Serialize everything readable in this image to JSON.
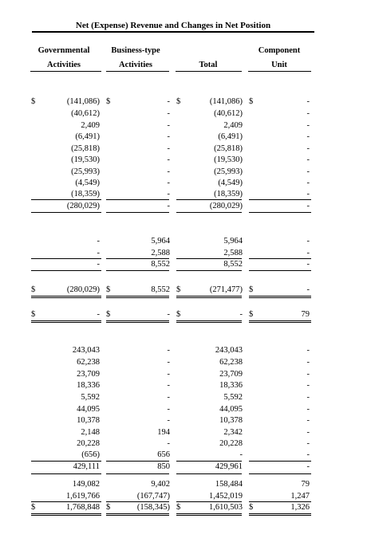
{
  "title": "Net (Expense) Revenue and Changes in Net Position",
  "headers": {
    "governmental": [
      "Governmental",
      "Activities"
    ],
    "business": [
      "Business-type",
      "Activities"
    ],
    "total": [
      "Total"
    ],
    "component": [
      "Component",
      "Unit"
    ]
  },
  "dollar_sign": "$",
  "dash": "-",
  "sections": {
    "s1": {
      "gov": [
        "(141,086)",
        "(40,612)",
        "2,409",
        "(6,491)",
        "(25,818)",
        "(19,530)",
        "(25,993)",
        "(4,549)",
        "(18,359)"
      ],
      "bus": [
        "-",
        "-",
        "-",
        "-",
        "-",
        "-",
        "-",
        "-",
        "-"
      ],
      "tot": [
        "(141,086)",
        "(40,612)",
        "2,409",
        "(6,491)",
        "(25,818)",
        "(19,530)",
        "(25,993)",
        "(4,549)",
        "(18,359)"
      ],
      "comp": [
        "-",
        "-",
        "-",
        "-",
        "-",
        "-",
        "-",
        "-",
        "-"
      ],
      "subtotal": {
        "gov": "(280,029)",
        "bus": "-",
        "tot": "(280,029)",
        "comp": "-"
      }
    },
    "s2": {
      "gov": [
        "-",
        "-"
      ],
      "bus": [
        "5,964",
        "2,588"
      ],
      "tot": [
        "5,964",
        "2,588"
      ],
      "comp": [
        "-",
        "-"
      ],
      "subtotal": {
        "gov": "-",
        "bus": "8,552",
        "tot": "8,552",
        "comp": "-"
      }
    },
    "net1": {
      "gov": "(280,029)",
      "bus": "8,552",
      "tot": "(271,477)",
      "comp": "-"
    },
    "net2": {
      "gov": "-",
      "bus": "-",
      "tot": "-",
      "comp": "79"
    },
    "s3": {
      "gov": [
        "243,043",
        "62,238",
        "23,709",
        "18,336",
        "5,592",
        "44,095",
        "10,378",
        "2,148",
        "20,228",
        "(656)"
      ],
      "bus": [
        "-",
        "-",
        "-",
        "-",
        "-",
        "-",
        "-",
        "194",
        "-",
        "656"
      ],
      "tot": [
        "243,043",
        "62,238",
        "23,709",
        "18,336",
        "5,592",
        "44,095",
        "10,378",
        "2,342",
        "20,228",
        "-"
      ],
      "comp": [
        "-",
        "-",
        "-",
        "-",
        "-",
        "-",
        "-",
        "-",
        "-",
        "-"
      ],
      "subtotal": {
        "gov": "429,111",
        "bus": "850",
        "tot": "429,961",
        "comp": "-"
      }
    },
    "change": {
      "gov": "149,082",
      "bus": "9,402",
      "tot": "158,484",
      "comp": "79"
    },
    "beginning": {
      "gov": "1,619,766",
      "bus": "(167,747)",
      "tot": "1,452,019",
      "comp": "1,247"
    },
    "ending": {
      "gov": "1,768,848",
      "bus": "(158,345)",
      "tot": "1,610,503",
      "comp": "1,326"
    }
  }
}
